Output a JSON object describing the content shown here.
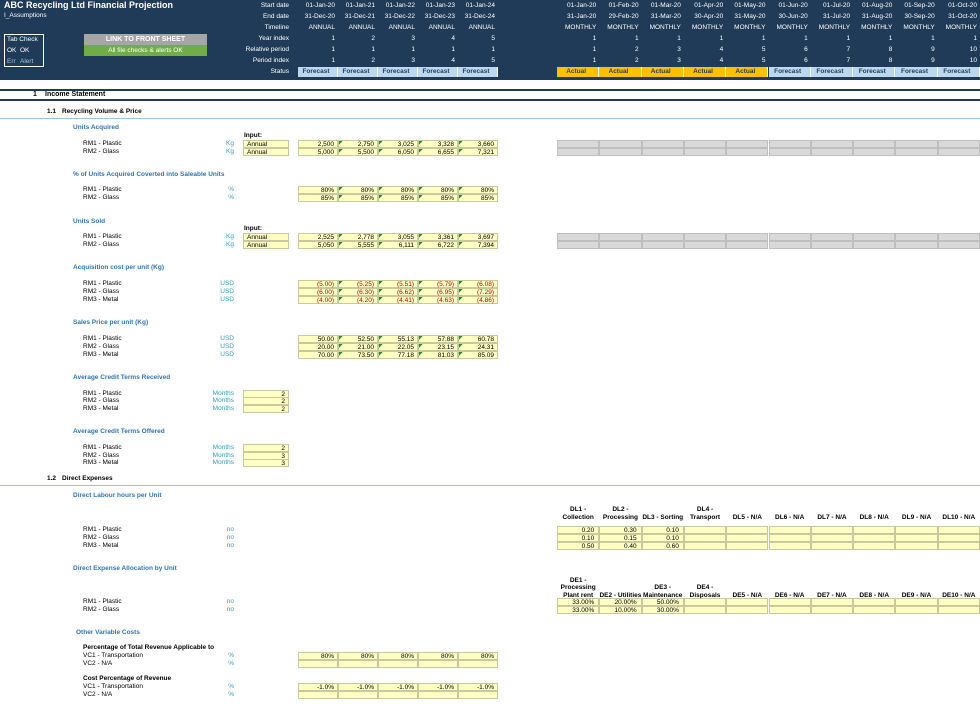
{
  "header": {
    "title": "ABC Recycling Ltd Financial Projection",
    "subtitle": "I_Assumptions",
    "tab_check": {
      "title": "Tab Check",
      "ok": [
        "OK",
        "OK"
      ],
      "err": [
        "Err",
        "Alert"
      ]
    },
    "buttons": [
      "LINK TO FRONT SHEET",
      "All file checks & alerts OK"
    ]
  },
  "timeline": [
    {
      "label": "Start date",
      "annual": [
        "01-Jan-20",
        "01-Jan-21",
        "01-Jan-22",
        "01-Jan-23",
        "01-Jan-24"
      ],
      "monthly": [
        "01-Jan-20",
        "01-Feb-20",
        "01-Mar-20",
        "01-Apr-20",
        "01-May-20",
        "01-Jun-20",
        "01-Jul-20",
        "01-Aug-20",
        "01-Sep-20",
        "01-Oct-20"
      ]
    },
    {
      "label": "End date",
      "annual": [
        "31-Dec-20",
        "31-Dec-21",
        "31-Dec-22",
        "31-Dec-23",
        "31-Dec-24"
      ],
      "monthly": [
        "31-Jan-20",
        "29-Feb-20",
        "31-Mar-20",
        "30-Apr-20",
        "31-May-20",
        "30-Jun-20",
        "31-Jul-20",
        "31-Aug-20",
        "30-Sep-20",
        "31-Oct-20"
      ]
    },
    {
      "label": "Timeline",
      "annual": [
        "ANNUAL",
        "ANNUAL",
        "ANNUAL",
        "ANNUAL",
        "ANNUAL"
      ],
      "monthly": [
        "MONTHLY",
        "MONTHLY",
        "MONTHLY",
        "MONTHLY",
        "MONTHLY",
        "MONTHLY",
        "MONTHLY",
        "MONTHLY",
        "MONTHLY",
        "MONTHLY"
      ]
    },
    {
      "label": "Year index",
      "annual": [
        1,
        2,
        3,
        4,
        5
      ],
      "monthly": [
        1,
        1,
        1,
        1,
        1,
        1,
        1,
        1,
        1,
        1
      ]
    },
    {
      "label": "Relative period",
      "annual": [
        1,
        1,
        1,
        1,
        1
      ],
      "monthly": [
        1,
        2,
        3,
        4,
        5,
        6,
        7,
        8,
        9,
        10
      ]
    },
    {
      "label": "Period index",
      "annual": [
        1,
        2,
        3,
        4,
        5
      ],
      "monthly": [
        1,
        2,
        3,
        4,
        5,
        6,
        7,
        8,
        9,
        10
      ]
    },
    {
      "label": "Status",
      "annual": [
        "Forecast",
        "Forecast",
        "Forecast",
        "Forecast",
        "Forecast"
      ],
      "monthly": [
        "Actual",
        "Actual",
        "Actual",
        "Actual",
        "Actual",
        "Forecast",
        "Forecast",
        "Forecast",
        "Forecast",
        "Forecast"
      ]
    }
  ],
  "sections": [
    {
      "number": "1",
      "title": "Income Statement"
    }
  ],
  "subsections": [
    {
      "number": "1.1",
      "title": "Recycling Volume & Price"
    },
    {
      "number": "1.2",
      "title": "Direct Expenses"
    }
  ],
  "blocks": [
    {
      "title": "Units Acquired",
      "input_label": "Input:",
      "rows": [
        {
          "label": "RM1 - Plastic",
          "unit": "Kg",
          "input": "Annual",
          "annual": [
            "2,500",
            "2,750",
            "3,025",
            "3,328",
            "3,660"
          ]
        },
        {
          "label": "RM2 - Glass",
          "unit": "Kg",
          "input": "Annual",
          "annual": [
            "5,000",
            "5,500",
            "6,050",
            "6,655",
            "7,321"
          ]
        }
      ]
    },
    {
      "title": "% of Units Acquired Coverted into Saleable Units",
      "rows": [
        {
          "label": "RM1 - Plastic",
          "unit": "%",
          "annual": [
            "80%",
            "80%",
            "80%",
            "80%",
            "80%"
          ]
        },
        {
          "label": "RM2 - Glass",
          "unit": "%",
          "annual": [
            "85%",
            "85%",
            "85%",
            "85%",
            "85%"
          ]
        }
      ]
    },
    {
      "title": "Units Sold",
      "input_label": "Input:",
      "rows": [
        {
          "label": "RM1 - Plastic",
          "unit": "Kg",
          "input": "Annual",
          "annual": [
            "2,525",
            "2,778",
            "3,055",
            "3,361",
            "3,697"
          ]
        },
        {
          "label": "RM2 - Glass",
          "unit": "Kg",
          "input": "Annual",
          "annual": [
            "5,050",
            "5,555",
            "6,111",
            "6,722",
            "7,394"
          ]
        }
      ]
    },
    {
      "title": "Acquisition cost per unit (Kg)",
      "value_color": "#c00000",
      "rows": [
        {
          "label": "RM1 - Plastic",
          "unit": "USD",
          "annual": [
            "(5.00)",
            "(5.25)",
            "(5.51)",
            "(5.79)",
            "(6.08)"
          ]
        },
        {
          "label": "RM2 - Glass",
          "unit": "USD",
          "annual": [
            "(6.00)",
            "(6.30)",
            "(6.62)",
            "(6.95)",
            "(7.29)"
          ]
        },
        {
          "label": "RM3 - Metal",
          "unit": "USD",
          "annual": [
            "(4.00)",
            "(4.20)",
            "(4.41)",
            "(4.63)",
            "(4.86)"
          ]
        }
      ]
    },
    {
      "title": "Sales Price per unit (Kg)",
      "rows": [
        {
          "label": "RM1 - Plastic",
          "unit": "USD",
          "annual": [
            "50.00",
            "52.50",
            "55.13",
            "57.88",
            "60.78"
          ]
        },
        {
          "label": "RM2 - Glass",
          "unit": "USD",
          "annual": [
            "20.00",
            "21.00",
            "22.05",
            "23.15",
            "24.31"
          ]
        },
        {
          "label": "RM3 - Metal",
          "unit": "USD",
          "annual": [
            "70.00",
            "73.50",
            "77.18",
            "81.03",
            "85.09"
          ]
        }
      ]
    },
    {
      "title": "Average Credit Terms Received",
      "rows": [
        {
          "label": "RM1 - Plastic",
          "unit": "Months",
          "input": "2"
        },
        {
          "label": "RM2 - Glass",
          "unit": "Months",
          "input": "2"
        },
        {
          "label": "RM3 - Metal",
          "unit": "Months",
          "input": "2"
        }
      ]
    },
    {
      "title": "Average Credit Terms Offered",
      "rows": [
        {
          "label": "RM1 - Plastic",
          "unit": "Months",
          "input": "2"
        },
        {
          "label": "RM2 - Glass",
          "unit": "Months",
          "input": "3"
        },
        {
          "label": "RM3 - Metal",
          "unit": "Months",
          "input": "3"
        }
      ]
    },
    {
      "title": "Direct Labour hours per Unit",
      "columns": [
        "DL1 - Collection",
        "DL2 - Processing",
        "DL3 - Sorting",
        "DL4 - Transport",
        "DL5 - N/A",
        "DL6 - N/A",
        "DL7 - N/A",
        "DL8 - N/A",
        "DL9 - N/A",
        "DL10 - N/A"
      ],
      "rows": [
        {
          "label": "RM1 - Plastic",
          "unit": "no",
          "monthly": [
            "0.20",
            "0.30",
            "0.10"
          ]
        },
        {
          "label": "RM2 - Glass",
          "unit": "no",
          "monthly": [
            "0.10",
            "0.15",
            "0.10"
          ]
        },
        {
          "label": "RM3 - Metal",
          "unit": "no",
          "monthly": [
            "0.50",
            "0.40",
            "0.60"
          ]
        }
      ]
    },
    {
      "title": "Direct Expense Allocation by Unit",
      "columns": [
        "DE1 - Processing Plant rent",
        "DE2 - Utilities",
        "DE3 - Maintenance",
        "DE4 - Disposals",
        "DE5 - N/A",
        "DE6 - N/A",
        "DE7 - N/A",
        "DE8 - N/A",
        "DE9 - N/A",
        "DE10 - N/A"
      ],
      "rows": [
        {
          "label": "RM1 - Plastic",
          "unit": "no",
          "monthly": [
            "33.00%",
            "20.00%",
            "50.00%"
          ]
        },
        {
          "label": "RM2 - Glass",
          "unit": "no",
          "monthly": [
            "33.00%",
            "10.00%",
            "30.00%"
          ]
        }
      ]
    },
    {
      "title": "Other Variable Costs",
      "subheading": "Percentage of Total Revenue Applicable to",
      "rows": [
        {
          "label": "VC1 - Transportation",
          "unit": "%",
          "annual": [
            "80%",
            "80%",
            "80%",
            "80%",
            "80%"
          ]
        },
        {
          "label": "VC2 - N/A",
          "unit": "%"
        }
      ]
    },
    {
      "subheading": "Cost Percentage of Revenue",
      "rows": [
        {
          "label": "VC1 - Transportation",
          "unit": "%",
          "annual": [
            "-1.0%",
            "-1.0%",
            "-1.0%",
            "-1.0%",
            "-1.0%"
          ]
        },
        {
          "label": "VC2 - N/A",
          "unit": "%"
        }
      ]
    }
  ]
}
